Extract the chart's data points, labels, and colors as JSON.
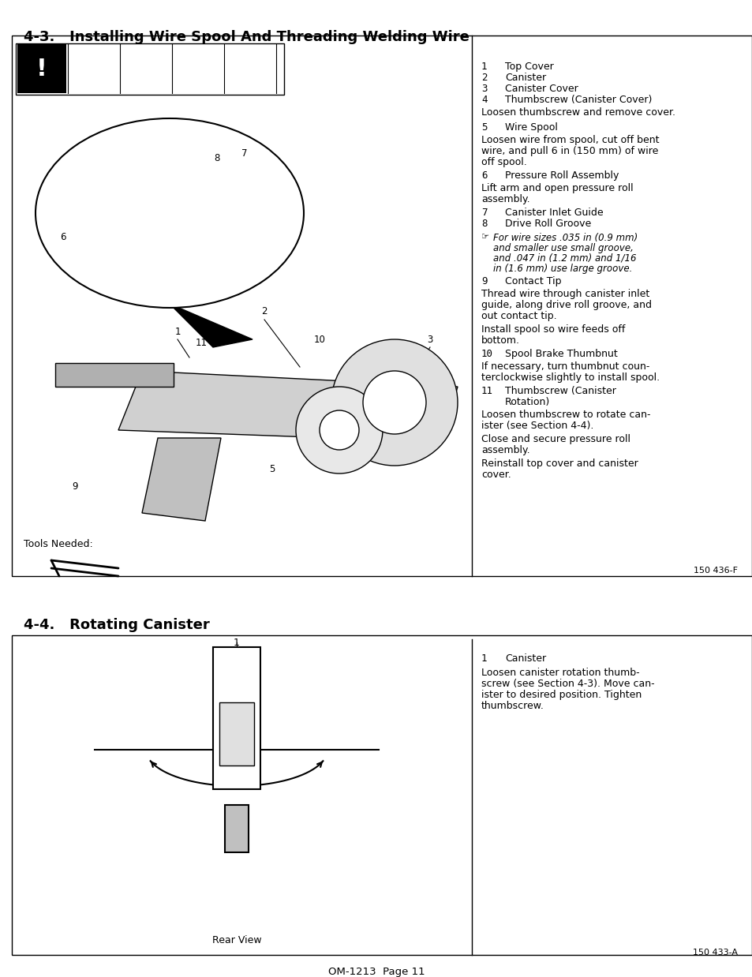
{
  "page_bg": "#ffffff",
  "border_color": "#000000",
  "text_color": "#000000",
  "page_width": 9.54,
  "page_height": 12.35,
  "section1_title": "4-3.   Installing Wire Spool And Threading Welding Wire",
  "section2_title": "4-4.   Rotating Canister",
  "footer_text": "OM-1213  Page 11",
  "figure1_label": "150 436-F",
  "figure2_label": "150 433-A",
  "right_col_items": [
    {
      "num": "1",
      "label": "Top Cover"
    },
    {
      "num": "2",
      "label": "Canister"
    },
    {
      "num": "3",
      "label": "Canister Cover"
    },
    {
      "num": "4",
      "label": "Thumbscrew (Canister Cover)"
    }
  ],
  "right_col_para1": "Loosen thumbscrew and remove cover.",
  "right_col_item5": {
    "num": "5",
    "label": "Wire Spool"
  },
  "right_col_para2": "Loosen wire from spool, cut off bent wire, and pull 6 in (150 mm) of wire off spool.",
  "right_col_item6": {
    "num": "6",
    "label": "Pressure Roll Assembly"
  },
  "right_col_para3": "Lift arm and open pressure roll assembly.",
  "right_col_item7": {
    "num": "7",
    "label": "Canister Inlet Guide"
  },
  "right_col_item8": {
    "num": "8",
    "label": "Drive Roll Groove"
  },
  "right_col_note": "For wire sizes .035 in (0.9 mm) and smaller use small groove, and .047 in (1.2 mm) and 1/16 in (1.6 mm) use large groove.",
  "right_col_item9": {
    "num": "9",
    "label": "Contact Tip"
  },
  "right_col_para4": "Thread wire through canister inlet guide, along drive roll groove, and out contact tip.",
  "right_col_para5": "Install spool so wire feeds off bottom.",
  "right_col_item10": {
    "num": "10",
    "label": "Spool Brake Thumbnut"
  },
  "right_col_para6": "If necessary, turn thumbnut counterclockwise slightly to install spool.",
  "right_col_item11": {
    "num": "11",
    "label": "Thumbscrew (Canister\nRotation)"
  },
  "right_col_para7": "Loosen thumbscrew to rotate canister (see Section 4-4).",
  "right_col_para8": "Close and secure pressure roll assembly.",
  "right_col_para9": "Reinstall top cover and canister cover.",
  "tools_label": "Tools Needed:",
  "sec2_item1": {
    "num": "1",
    "label": "Canister"
  },
  "sec2_para1": "Loosen canister rotation thumbscrew (see Section 4-3). Move canister to desired position. Tighten thumbscrew.",
  "sec2_view_label": "Rear View"
}
